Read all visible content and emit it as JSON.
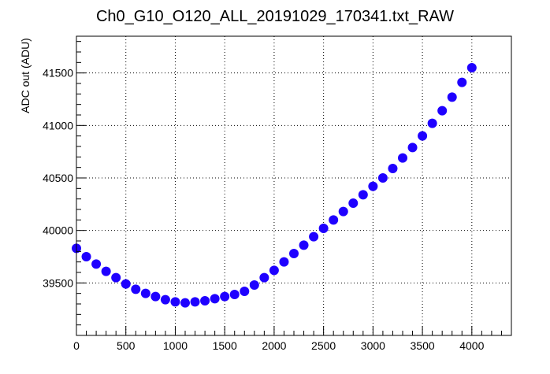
{
  "chart_data": {
    "type": "scatter",
    "title": "Ch0_G10_O120_ALL_20191029_170341.txt_RAW",
    "xlabel": "",
    "ylabel": "ADC out (ADU)",
    "xlim": [
      0,
      4400
    ],
    "ylim": [
      39000,
      41850
    ],
    "grid": true,
    "x_ticks": [
      0,
      500,
      1000,
      1500,
      2000,
      2500,
      3000,
      3500,
      4000
    ],
    "y_ticks": [
      39500,
      40000,
      40500,
      41000,
      41500
    ],
    "marker_color": "#1f00ff",
    "series": [
      {
        "x": [
          0,
          100,
          200,
          300,
          400,
          500,
          600,
          700,
          800,
          900,
          1000,
          1100,
          1200,
          1300,
          1400,
          1500,
          1600,
          1700,
          1800,
          1900,
          2000,
          2100,
          2200,
          2300,
          2400,
          2500,
          2600,
          2700,
          2800,
          2900,
          3000,
          3100,
          3200,
          3300,
          3400,
          3500,
          3600,
          3700,
          3800,
          3900,
          4000
        ],
        "values": [
          39830,
          39750,
          39680,
          39610,
          39550,
          39490,
          39440,
          39400,
          39370,
          39340,
          39320,
          39310,
          39320,
          39330,
          39350,
          39370,
          39390,
          39420,
          39480,
          39550,
          39620,
          39700,
          39780,
          39860,
          39940,
          40020,
          40100,
          40180,
          40260,
          40340,
          40420,
          40500,
          40590,
          40690,
          40790,
          40900,
          41020,
          41140,
          41270,
          41410,
          41550
        ]
      }
    ]
  }
}
